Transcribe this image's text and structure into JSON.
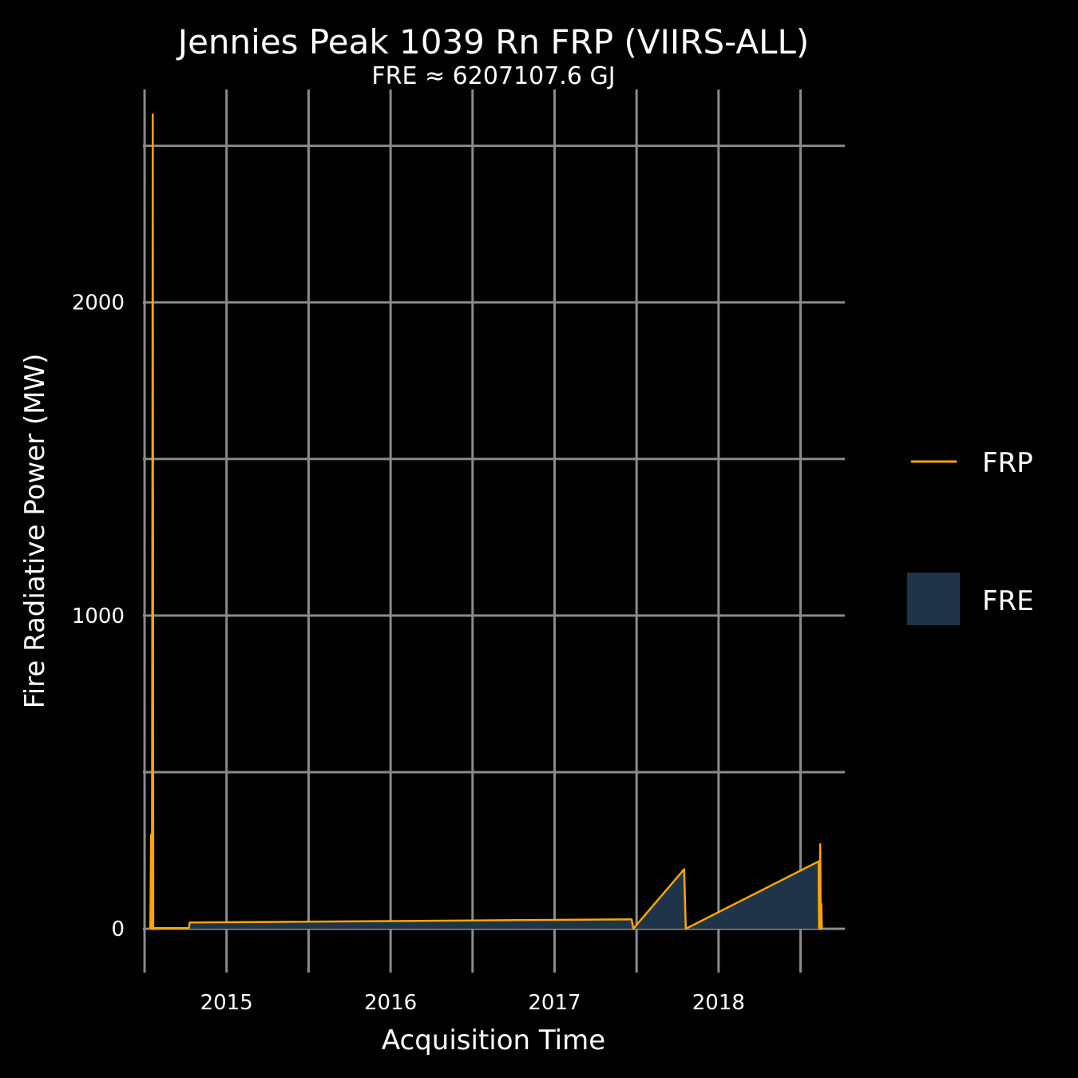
{
  "chart_data": {
    "type": "line",
    "title": "Jennies Peak 1039 Rn FRP (VIIRS-ALL)",
    "subtitle": "FRE ≈ 6207107.6 GJ",
    "xlabel": "Acquisition Time",
    "ylabel": "Fire Radiative Power (MW)",
    "x_ticks": [
      "2015",
      "2016",
      "2017",
      "2018"
    ],
    "y_ticks": [
      0,
      1000,
      2000
    ],
    "xlim": [
      2014.49,
      2018.77
    ],
    "ylim": [
      -140,
      2680
    ],
    "grid": true,
    "legend_position": "right",
    "colors": {
      "frp_line": "#FFA500",
      "fre_fill": "#1F3349",
      "background": "#000000",
      "grid": "#8a8a8a"
    },
    "series": [
      {
        "name": "FRP",
        "kind": "line",
        "x": [
          2014.535,
          2014.54,
          2014.545,
          2014.55,
          2014.553,
          2014.56,
          2014.56,
          2014.77,
          2014.775,
          2014.78,
          2017.46,
          2017.47,
          2017.48,
          2017.79,
          2017.8,
          2018.61,
          2018.613,
          2018.62,
          2018.623,
          2018.626,
          2018.63
        ],
        "values": [
          0,
          300,
          0,
          2600,
          0,
          0,
          2,
          2,
          20,
          20,
          30,
          30,
          0,
          190,
          0,
          215,
          0,
          270,
          0,
          80,
          0
        ]
      },
      {
        "name": "FRE",
        "kind": "area"
      }
    ]
  }
}
